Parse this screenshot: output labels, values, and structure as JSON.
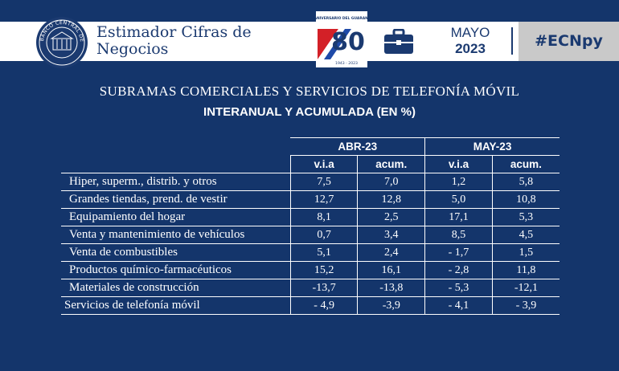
{
  "header": {
    "seal_text": "BANCO CENTRAL DEL PARAGUAY",
    "brand_line1": "Estimador Cifras de",
    "brand_line2": "Negocios",
    "anniversary_top": "ANIVERSARIO DEL GUARANÍ",
    "anniversary_number": "80",
    "anniversary_years": "1943 - 2023",
    "month": "MAYO",
    "year": "2023",
    "hashtag": "#ECNpy",
    "colors": {
      "navy": "#14356b",
      "header_white": "#ffffff",
      "hashtag_bg": "#c9c9c9",
      "flag_red": "#d32027",
      "flag_blue": "#1f4aa8"
    }
  },
  "title": {
    "line1": "SUBRAMAS COMERCIALES Y SERVICIOS DE TELEFONÍA MÓVIL",
    "line2": "INTERANUAL Y ACUMULADA (EN %)"
  },
  "table": {
    "groups": [
      "ABR-23",
      "MAY-23"
    ],
    "subheaders": [
      "v.i.a",
      "acum.",
      "v.i.a",
      "acum."
    ],
    "rows": [
      {
        "label": "Hiper, superm., distrib. y otros",
        "values": [
          "7,5",
          "7,0",
          "1,2",
          "5,8"
        ]
      },
      {
        "label": "Grandes tiendas, prend. de vestir",
        "values": [
          "12,7",
          "12,8",
          "5,0",
          "10,8"
        ]
      },
      {
        "label": "Equipamiento del hogar",
        "values": [
          "8,1",
          "2,5",
          "17,1",
          "5,3"
        ]
      },
      {
        "label": "Venta y mantenimiento de vehículos",
        "values": [
          "0,7",
          "3,4",
          "8,5",
          "4,5"
        ]
      },
      {
        "label": "Venta de combustibles",
        "values": [
          "5,1",
          "2,4",
          "- 1,7",
          "1,5"
        ]
      },
      {
        "label": "Productos químico-farmacéuticos",
        "values": [
          "15,2",
          "16,1",
          "- 2,8",
          "11,8"
        ]
      },
      {
        "label": "Materiales de construcción",
        "values": [
          "-13,7",
          "-13,8",
          "- 5,3",
          "-12,1"
        ]
      },
      {
        "label": "Servicios de telefonía móvil",
        "values": [
          "- 4,9",
          "-3,9",
          "- 4,1",
          "- 3,9"
        ]
      }
    ]
  }
}
